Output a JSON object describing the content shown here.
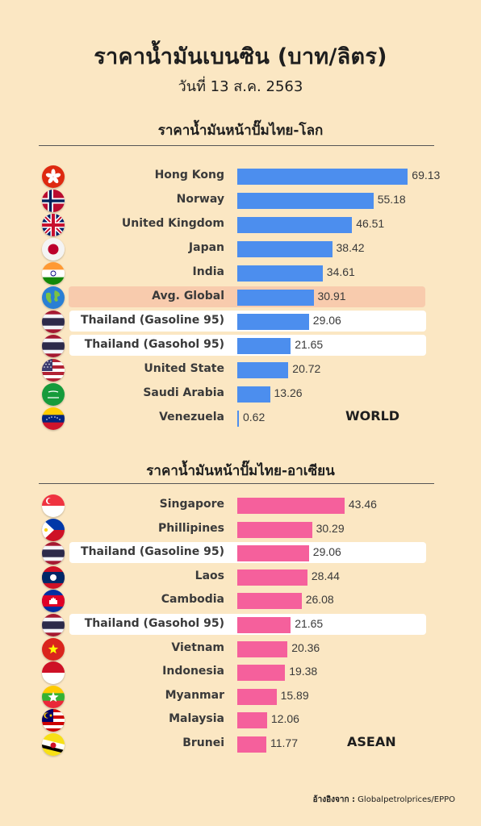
{
  "title": "ราคาน้ำมันเบนซิน (บาท/ลิตร)",
  "subtitle": "วันที่ 13 ส.ค. 2563",
  "source_label": "อ้างอิงจาก :",
  "source_text": "Globalpetrolprices/EPPO",
  "colors": {
    "background": "#fbe7c3",
    "world_bar": "#4c8eee",
    "asean_bar": "#f5609c",
    "avg_highlight": "#f8cbad",
    "thai_highlight": "#ffffff"
  },
  "chart_data": [
    {
      "type": "bar",
      "orientation": "horizontal",
      "title": "ราคาน้ำมันหน้าปั๊มไทย-โลก",
      "tag": "WORLD",
      "bar_color": "#4c8eee",
      "categories": [
        "Hong Kong",
        "Norway",
        "United Kingdom",
        "Japan",
        "India",
        "Avg. Global",
        "Thailand (Gasoline 95)",
        "Thailand (Gasohol 95)",
        "United State",
        "Saudi Arabia",
        "Venezuela"
      ],
      "values": [
        69.13,
        55.18,
        46.51,
        38.42,
        34.61,
        30.91,
        29.06,
        21.65,
        20.72,
        13.26,
        0.62
      ],
      "value_labels": [
        "69.13",
        "55.18",
        "46.51",
        "38.42",
        "34.61",
        "30.91",
        "29.06",
        "21.65",
        "20.72",
        "13.26",
        "0.62"
      ],
      "flags": [
        "hk-flag-icon",
        "no-flag-icon",
        "uk-flag-icon",
        "jp-flag-icon",
        "in-flag-icon",
        "globe-icon",
        "th-flag-icon",
        "th-flag-icon",
        "us-flag-icon",
        "sa-flag-icon",
        "ve-flag-icon"
      ],
      "highlights": [
        "",
        "",
        "",
        "",
        "",
        "avg",
        "thai",
        "thai",
        "",
        "",
        ""
      ],
      "xlim": [
        0,
        70
      ]
    },
    {
      "type": "bar",
      "orientation": "horizontal",
      "title": "ราคาน้ำมันหน้าปั๊มไทย-อาเซียน",
      "tag": "ASEAN",
      "bar_color": "#f5609c",
      "categories": [
        "Singapore",
        "Phillipines",
        "Thailand (Gasoline 95)",
        "Laos",
        "Cambodia",
        "Thailand (Gasohol 95)",
        "Vietnam",
        "Indonesia",
        "Myanmar",
        "Malaysia",
        "Brunei"
      ],
      "values": [
        43.46,
        30.29,
        29.06,
        28.44,
        26.08,
        21.65,
        20.36,
        19.38,
        15.89,
        12.06,
        11.77
      ],
      "value_labels": [
        "43.46",
        "30.29",
        "29.06",
        "28.44",
        "26.08",
        "21.65",
        "20.36",
        "19.38",
        "15.89",
        "12.06",
        "11.77"
      ],
      "flags": [
        "sg-flag-icon",
        "ph-flag-icon",
        "th-flag-icon",
        "la-flag-icon",
        "kh-flag-icon",
        "th-flag-icon",
        "vn-flag-icon",
        "id-flag-icon",
        "mm-flag-icon",
        "my-flag-icon",
        "bn-flag-icon"
      ],
      "highlights": [
        "",
        "",
        "thai",
        "",
        "",
        "thai",
        "",
        "",
        "",
        "",
        ""
      ],
      "xlim": [
        0,
        70
      ]
    }
  ]
}
